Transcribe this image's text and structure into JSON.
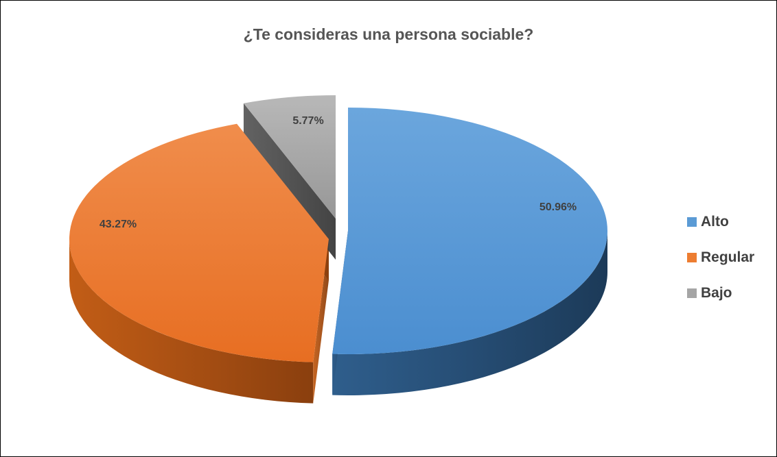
{
  "chart_data": {
    "type": "pie",
    "title": "¿Te consideras una persona sociable?",
    "categories": [
      "Alto",
      "Regular",
      "Bajo"
    ],
    "values": [
      50.96,
      43.27,
      5.77
    ],
    "data_labels": [
      "50.96%",
      "43.27%",
      "5.77%"
    ],
    "colors": [
      "#5b9bd5",
      "#ed7d31",
      "#a5a5a5"
    ],
    "style": "3d-exploded",
    "legend_position": "right"
  }
}
